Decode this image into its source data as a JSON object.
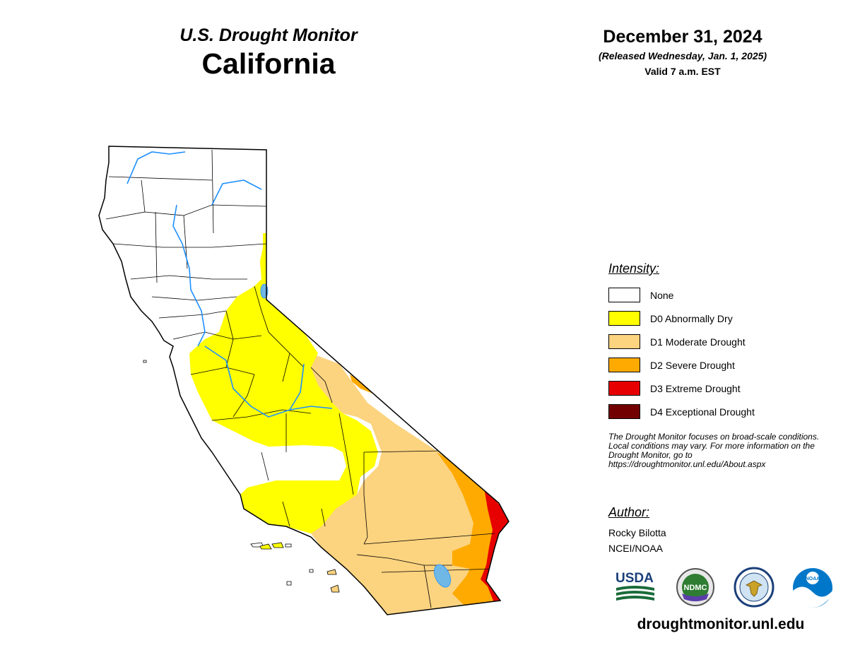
{
  "header": {
    "subtitle": "U.S. Drought Monitor",
    "state": "California",
    "date": "December 31, 2024",
    "released": "(Released Wednesday, Jan. 1, 2025)",
    "valid": "Valid 7 a.m. EST"
  },
  "legend": {
    "heading": "Intensity:",
    "items": [
      {
        "label": "None",
        "color": "#ffffff"
      },
      {
        "label": "D0 Abnormally Dry",
        "color": "#ffff00"
      },
      {
        "label": "D1 Moderate Drought",
        "color": "#fcd37f"
      },
      {
        "label": "D2 Severe Drought",
        "color": "#ffaa00"
      },
      {
        "label": "D3 Extreme Drought",
        "color": "#e60000"
      },
      {
        "label": "D4 Exceptional Drought",
        "color": "#730000"
      }
    ]
  },
  "note": "The Drought Monitor focuses on broad-scale conditions. Local conditions may vary. For more information on the Drought Monitor, go to https://droughtmonitor.unl.edu/About.aspx",
  "author": {
    "heading": "Author:",
    "name": "Rocky Bilotta",
    "org": "NCEI/NOAA"
  },
  "logos": {
    "usda": "USDA",
    "ndmc": "NDMC",
    "noaa": "NOAA",
    "commerce_icon": "eagle-seal-icon"
  },
  "website": "droughtmonitor.unl.edu",
  "colors": {
    "water": "#6fb8e6",
    "river": "#1e90ff",
    "outline": "#000000"
  }
}
